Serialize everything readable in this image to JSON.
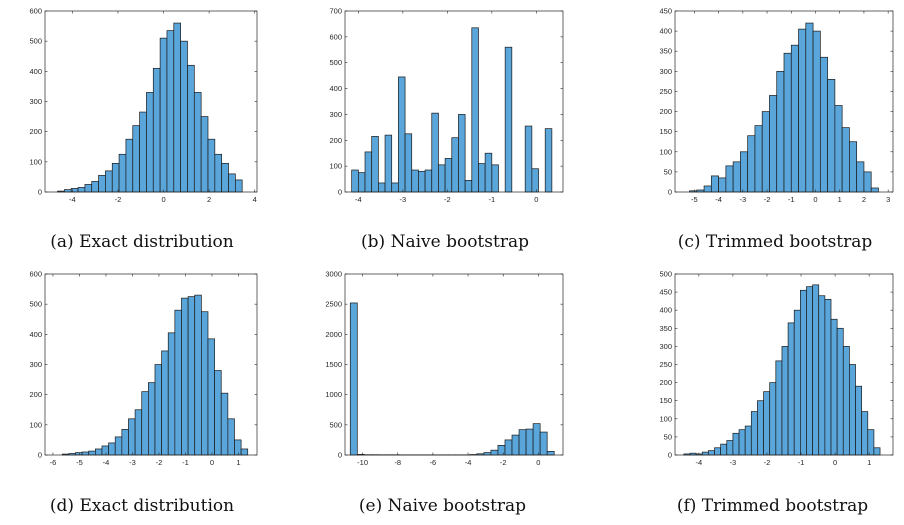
{
  "colors": {
    "bar_fill": "#5aa5da",
    "bar_edge": "#1a1a1a",
    "axis": "#262626"
  },
  "chart_data": [
    {
      "id": "a",
      "type": "bar",
      "caption": "(a) Exact distribution",
      "xlim": [
        -5.2,
        4.1
      ],
      "ylim": [
        0,
        600
      ],
      "xticks": [
        -4,
        -2,
        0,
        2,
        4
      ],
      "yticks": [
        0,
        100,
        200,
        300,
        400,
        500,
        600
      ],
      "bin_width": 0.3,
      "bins_start": [
        -4.65,
        -4.35,
        -4.05,
        -3.75,
        -3.45,
        -3.15,
        -2.85,
        -2.55,
        -2.25,
        -1.95,
        -1.65,
        -1.35,
        -1.05,
        -0.75,
        -0.45,
        -0.15,
        0.15,
        0.45,
        0.75,
        1.05,
        1.35,
        1.65,
        1.95,
        2.25,
        2.55,
        2.85,
        3.15
      ],
      "values": [
        3,
        8,
        12,
        15,
        25,
        35,
        55,
        70,
        95,
        125,
        175,
        220,
        265,
        330,
        410,
        510,
        535,
        560,
        500,
        420,
        330,
        250,
        175,
        125,
        95,
        60,
        40
      ]
    },
    {
      "id": "b",
      "type": "bar",
      "caption": "(b) Naive bootstrap",
      "xlim": [
        -4.3,
        0.6
      ],
      "ylim": [
        0,
        700
      ],
      "xticks": [
        -4,
        -3,
        -2,
        -1,
        0
      ],
      "yticks": [
        0,
        100,
        200,
        300,
        400,
        500,
        600,
        700
      ],
      "bin_width": 0.15,
      "bins_start": [
        -4.15,
        -4.0,
        -3.85,
        -3.7,
        -3.55,
        -3.4,
        -3.25,
        -3.1,
        -2.95,
        -2.8,
        -2.65,
        -2.5,
        -2.35,
        -2.2,
        -2.05,
        -1.9,
        -1.75,
        -1.6,
        -1.45,
        -1.3,
        -1.15,
        -1.0,
        -0.85,
        -0.7,
        -0.55,
        -0.4,
        -0.25,
        -0.1,
        0.05,
        0.2,
        0.35
      ],
      "values": [
        85,
        75,
        155,
        215,
        35,
        220,
        35,
        445,
        225,
        85,
        80,
        85,
        305,
        105,
        130,
        210,
        300,
        45,
        635,
        110,
        150,
        105,
        0,
        560,
        0,
        0,
        255,
        90,
        0,
        245,
        0
      ]
    },
    {
      "id": "c",
      "type": "bar",
      "caption": "(c) Trimmed bootstrap",
      "xlim": [
        -5.8,
        3.2
      ],
      "ylim": [
        0,
        450
      ],
      "xticks": [
        -5,
        -4,
        -3,
        -2,
        -1,
        0,
        1,
        2,
        3
      ],
      "yticks": [
        0,
        50,
        100,
        150,
        200,
        250,
        300,
        350,
        400,
        450
      ],
      "bin_width": 0.3,
      "bins_start": [
        -5.2,
        -4.9,
        -4.6,
        -4.3,
        -4.0,
        -3.7,
        -3.4,
        -3.1,
        -2.8,
        -2.5,
        -2.2,
        -1.9,
        -1.6,
        -1.3,
        -1.0,
        -0.7,
        -0.4,
        -0.1,
        0.2,
        0.5,
        0.8,
        1.1,
        1.4,
        1.7,
        2.0,
        2.3
      ],
      "values": [
        3,
        5,
        15,
        40,
        35,
        65,
        75,
        100,
        140,
        165,
        200,
        240,
        300,
        345,
        365,
        405,
        420,
        400,
        335,
        280,
        215,
        160,
        125,
        75,
        50,
        10
      ]
    },
    {
      "id": "d",
      "type": "bar",
      "caption": "(d) Exact distribution",
      "xlim": [
        -6.3,
        1.7
      ],
      "ylim": [
        0,
        600
      ],
      "xticks": [
        -6,
        -5,
        -4,
        -3,
        -2,
        -1,
        0,
        1
      ],
      "yticks": [
        0,
        100,
        200,
        300,
        400,
        500,
        600
      ],
      "bin_width": 0.25,
      "bins_start": [
        -5.65,
        -5.4,
        -5.15,
        -4.9,
        -4.65,
        -4.4,
        -4.15,
        -3.9,
        -3.65,
        -3.4,
        -3.15,
        -2.9,
        -2.65,
        -2.4,
        -2.15,
        -1.9,
        -1.65,
        -1.4,
        -1.15,
        -0.9,
        -0.65,
        -0.4,
        -0.15,
        0.1,
        0.35,
        0.6,
        0.85,
        1.1
      ],
      "values": [
        3,
        5,
        8,
        10,
        13,
        20,
        30,
        40,
        60,
        85,
        120,
        150,
        210,
        240,
        300,
        345,
        405,
        480,
        520,
        525,
        530,
        475,
        385,
        280,
        205,
        120,
        50,
        20
      ]
    },
    {
      "id": "e",
      "type": "bar",
      "caption": "(e) Naive bootstrap",
      "xlim": [
        -11.0,
        1.4
      ],
      "ylim": [
        0,
        3000
      ],
      "xticks": [
        -10,
        -8,
        -6,
        -4,
        -2,
        0
      ],
      "yticks": [
        0,
        500,
        1000,
        1500,
        2000,
        2500,
        3000
      ],
      "bin_width": 0.4,
      "bins_start": [
        -10.7,
        -10.3,
        -9.9,
        -9.5,
        -9.1,
        -8.7,
        -8.3,
        -7.9,
        -7.5,
        -7.1,
        -6.7,
        -6.3,
        -5.9,
        -5.5,
        -5.1,
        -4.7,
        -4.3,
        -3.9,
        -3.5,
        -3.1,
        -2.7,
        -2.3,
        -1.9,
        -1.5,
        -1.1,
        -0.7,
        -0.3,
        0.1,
        0.5
      ],
      "values": [
        2520,
        10,
        5,
        5,
        4,
        4,
        4,
        3,
        3,
        3,
        3,
        3,
        3,
        3,
        3,
        3,
        3,
        8,
        20,
        40,
        80,
        160,
        250,
        330,
        420,
        430,
        520,
        380,
        60
      ]
    },
    {
      "id": "f",
      "type": "bar",
      "caption": "(f) Trimmed bootstrap",
      "xlim": [
        -4.7,
        1.7
      ],
      "ylim": [
        0,
        500
      ],
      "xticks": [
        -4,
        -3,
        -2,
        -1,
        0,
        1
      ],
      "yticks": [
        0,
        50,
        100,
        150,
        200,
        250,
        300,
        350,
        400,
        450,
        500
      ],
      "bin_width": 0.18,
      "bins_start": [
        -4.44,
        -4.26,
        -4.08,
        -3.9,
        -3.72,
        -3.54,
        -3.36,
        -3.18,
        -3.0,
        -2.82,
        -2.64,
        -2.46,
        -2.28,
        -2.1,
        -1.92,
        -1.74,
        -1.56,
        -1.38,
        -1.2,
        -1.02,
        -0.84,
        -0.66,
        -0.48,
        -0.3,
        -0.12,
        0.06,
        0.24,
        0.42,
        0.6,
        0.78,
        0.96,
        1.14
      ],
      "values": [
        3,
        5,
        3,
        8,
        12,
        20,
        30,
        40,
        60,
        70,
        80,
        120,
        150,
        175,
        200,
        260,
        300,
        365,
        400,
        455,
        465,
        470,
        440,
        430,
        375,
        350,
        300,
        250,
        190,
        120,
        70,
        20
      ]
    }
  ]
}
